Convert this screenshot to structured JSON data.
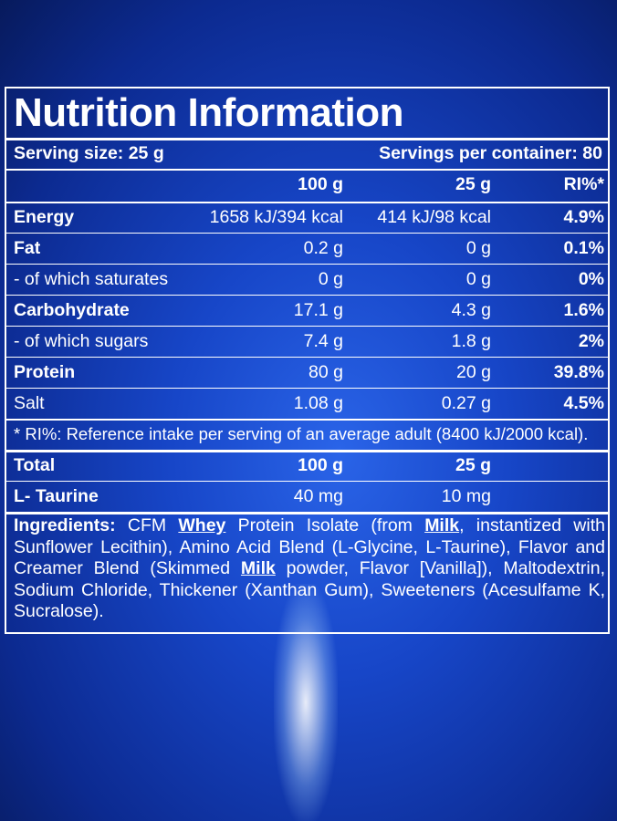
{
  "title": "Nutrition Information",
  "serving_size": "Serving size: 25 g",
  "servings_per_container": "Servings per container: 80",
  "table": {
    "columns": [
      "100 g",
      "25 g",
      "RI%*"
    ],
    "rows": [
      {
        "label": "Energy",
        "bold": true,
        "cells": [
          "1658 kJ/394 kcal",
          "414 kJ/98 kcal",
          "4.9%"
        ]
      },
      {
        "label": "Fat",
        "bold": true,
        "cells": [
          "0.2 g",
          "0 g",
          "0.1%"
        ]
      },
      {
        "label": "- of which saturates",
        "bold": false,
        "cells": [
          "0 g",
          "0 g",
          "0%"
        ]
      },
      {
        "label": "Carbohydrate",
        "bold": true,
        "cells": [
          "17.1 g",
          "4.3 g",
          "1.6%"
        ]
      },
      {
        "label": "- of which sugars",
        "bold": false,
        "cells": [
          "7.4 g",
          "1.8 g",
          "2%"
        ]
      },
      {
        "label": "Protein",
        "bold": true,
        "cells": [
          "80 g",
          "20 g",
          "39.8%"
        ]
      },
      {
        "label": "Salt",
        "bold": false,
        "cells": [
          "1.08 g",
          "0.27 g",
          "4.5%"
        ]
      }
    ],
    "footnote": "* RI%: Reference intake per serving of an average adult (8400 kJ/2000 kcal)."
  },
  "amino": {
    "header": {
      "label": "Total",
      "cells": [
        "100 g",
        "25 g"
      ]
    },
    "rows": [
      {
        "label": "L- Taurine",
        "cells": [
          "40 mg",
          "10 mg"
        ]
      }
    ]
  },
  "ingredients": {
    "label": "Ingredients:",
    "parts": [
      {
        "text": "CFM",
        "allergen": false
      },
      {
        "text": "Whey",
        "allergen": true
      },
      {
        "text": "Protein Isolate (from",
        "allergen": false
      },
      {
        "text": "Milk",
        "allergen": true
      },
      {
        "text": ", instantized with Sunflower Lecithin), Amino Acid Blend (L-Glycine, L-Taurine), Flavor and Creamer Blend (Skimmed",
        "allergen": false
      },
      {
        "text": "Milk",
        "allergen": true
      },
      {
        "text": "powder, Flavor [Vanilla]), Maltodextrin, Sodium Chloride, Thickener (Xanthan Gum), Sweeteners (Acesulfame K, Sucralose).",
        "allergen": false
      }
    ]
  }
}
